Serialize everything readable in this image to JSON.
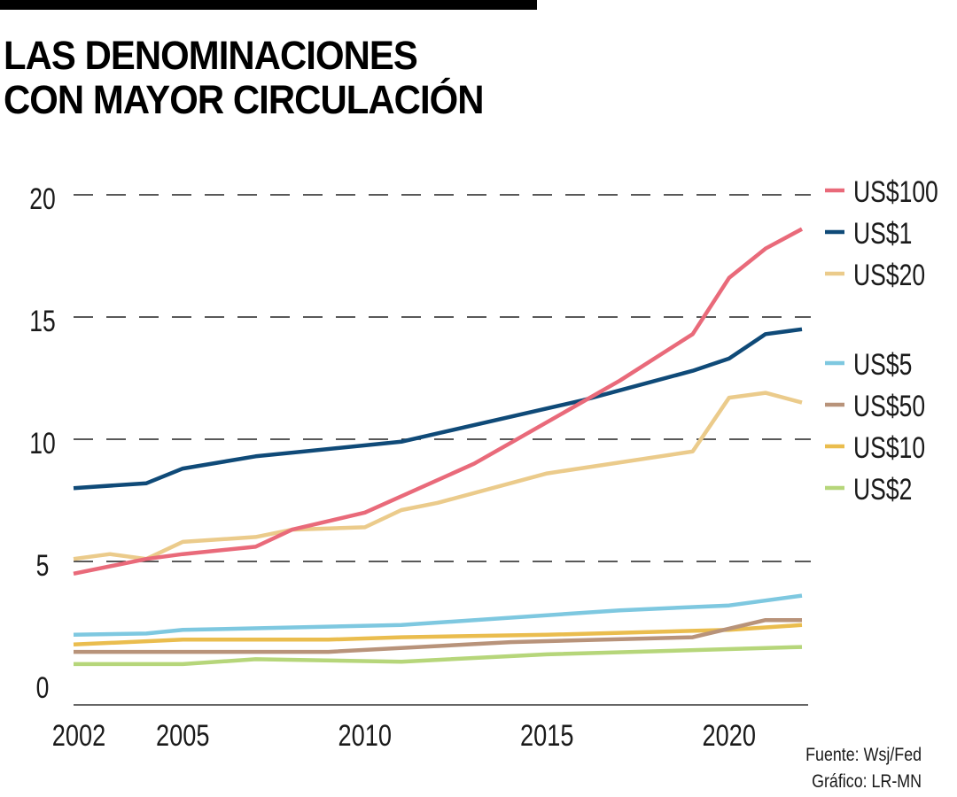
{
  "header": {
    "title_line1": "LAS DENOMINACIONES",
    "title_line2": "CON MAYOR CIRCULACIÓN"
  },
  "footer": {
    "source": "Fuente: Wsj/Fed",
    "credit": "Gráfico: LR-MN"
  },
  "chart_data": {
    "type": "line",
    "title": "LAS DENOMINACIONES CON MAYOR CIRCULACIÓN",
    "xlabel": "",
    "ylabel": "",
    "xlim": [
      2002,
      2022
    ],
    "ylim": [
      0,
      20
    ],
    "x_ticks": [
      2002,
      2005,
      2010,
      2015,
      2020
    ],
    "y_ticks": [
      0,
      5,
      10,
      15,
      20
    ],
    "y_gridlines": [
      5,
      10,
      15,
      20
    ],
    "grid": "dashed-horizontal",
    "legend_position": "right",
    "series": [
      {
        "name": "US$100",
        "color": "#e96a7a",
        "points": [
          [
            2002,
            4.5
          ],
          [
            2004,
            5.1
          ],
          [
            2005,
            5.3
          ],
          [
            2007,
            5.6
          ],
          [
            2008,
            6.3
          ],
          [
            2010,
            7.0
          ],
          [
            2013,
            9.0
          ],
          [
            2017,
            12.4
          ],
          [
            2019,
            14.3
          ],
          [
            2020,
            16.6
          ],
          [
            2021,
            17.8
          ],
          [
            2022,
            18.6
          ]
        ]
      },
      {
        "name": "US$1",
        "color": "#0f4a78",
        "points": [
          [
            2002,
            8.0
          ],
          [
            2004,
            8.2
          ],
          [
            2005,
            8.8
          ],
          [
            2007,
            9.3
          ],
          [
            2011,
            9.9
          ],
          [
            2016,
            11.6
          ],
          [
            2019,
            12.8
          ],
          [
            2020,
            13.3
          ],
          [
            2021,
            14.3
          ],
          [
            2022,
            14.5
          ]
        ]
      },
      {
        "name": "US$20",
        "color": "#ebcb8b",
        "points": [
          [
            2002,
            5.1
          ],
          [
            2003,
            5.3
          ],
          [
            2004,
            5.1
          ],
          [
            2005,
            5.8
          ],
          [
            2007,
            6.0
          ],
          [
            2008,
            6.3
          ],
          [
            2010,
            6.4
          ],
          [
            2011,
            7.1
          ],
          [
            2012,
            7.4
          ],
          [
            2015,
            8.6
          ],
          [
            2019,
            9.5
          ],
          [
            2020,
            11.7
          ],
          [
            2021,
            11.9
          ],
          [
            2022,
            11.5
          ]
        ]
      },
      {
        "name": "US$5",
        "color": "#7ec8e0",
        "points": [
          [
            2002,
            2.0
          ],
          [
            2004,
            2.05
          ],
          [
            2005,
            2.2
          ],
          [
            2011,
            2.4
          ],
          [
            2017,
            3.0
          ],
          [
            2020,
            3.2
          ],
          [
            2022,
            3.6
          ]
        ]
      },
      {
        "name": "US$50",
        "color": "#b8937a",
        "points": [
          [
            2002,
            1.3
          ],
          [
            2009,
            1.3
          ],
          [
            2014,
            1.7
          ],
          [
            2019,
            1.9
          ],
          [
            2021,
            2.6
          ],
          [
            2022,
            2.6
          ]
        ]
      },
      {
        "name": "US$10",
        "color": "#eabd4e",
        "points": [
          [
            2002,
            1.6
          ],
          [
            2005,
            1.8
          ],
          [
            2009,
            1.8
          ],
          [
            2011,
            1.9
          ],
          [
            2015,
            2.0
          ],
          [
            2020,
            2.2
          ],
          [
            2022,
            2.4
          ]
        ]
      },
      {
        "name": "US$2",
        "color": "#b6d67a",
        "points": [
          [
            2002,
            0.8
          ],
          [
            2005,
            0.8
          ],
          [
            2007,
            1.0
          ],
          [
            2011,
            0.9
          ],
          [
            2015,
            1.2
          ],
          [
            2022,
            1.5
          ]
        ]
      }
    ],
    "legend_groups": [
      [
        "US$100",
        "US$1",
        "US$20"
      ],
      [
        "US$5",
        "US$50",
        "US$10",
        "US$2"
      ]
    ]
  }
}
